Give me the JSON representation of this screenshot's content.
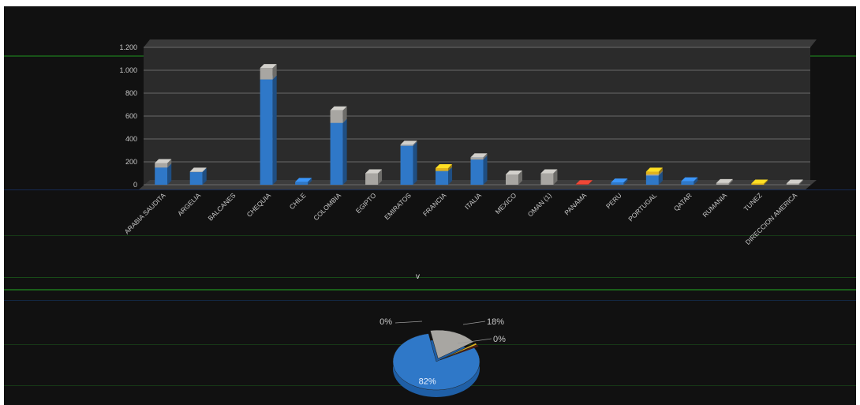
{
  "colors": {
    "background": "#111111",
    "plot_area": "#2b2b2b",
    "grid": "#6a6a6a",
    "blue": "#2f78c8",
    "blue_light": "#66a5e8",
    "gray": "#a8a6a2",
    "gray_light": "#d2d0cc",
    "yellow": "#e1b21c",
    "red": "#c0392b",
    "dark_red": "#5a1a12",
    "label": "#c8c8c8"
  },
  "chart_data": [
    {
      "type": "bar",
      "stacked": true,
      "three_d": true,
      "title": "",
      "xlabel": "",
      "ylabel": "",
      "ylim": [
        0,
        1200
      ],
      "yticks": [
        0,
        200,
        400,
        600,
        800,
        1000,
        1200
      ],
      "ytick_labels": [
        "0",
        "200",
        "400",
        "600",
        "800",
        "1.000",
        "1.200"
      ],
      "grid": true,
      "legend": "none",
      "categories": [
        "ARABIA SAUDITA",
        "ARGELIA",
        "BALCANES",
        "CHEQUIA",
        "CHILE",
        "COLOMBIA",
        "EGIPTO",
        "EMIRATOS",
        "FRANCIA",
        "ITALIA",
        "MEXICO",
        "OMAN (1)",
        "PANAMA",
        "PERU",
        "PORTUGAL",
        "QATAR",
        "RUMANIA",
        "TUNEZ",
        "DIRECCION AMERICA"
      ],
      "series": [
        {
          "color_key": "blue",
          "values": [
            150,
            110,
            0,
            920,
            25,
            540,
            0,
            340,
            120,
            220,
            0,
            0,
            0,
            20,
            80,
            30,
            0,
            0,
            0
          ]
        },
        {
          "color_key": "gray",
          "values": [
            40,
            5,
            0,
            100,
            0,
            110,
            100,
            10,
            0,
            20,
            90,
            100,
            0,
            0,
            10,
            0,
            15,
            0,
            10
          ]
        },
        {
          "color_key": "yellow",
          "values": [
            0,
            0,
            0,
            0,
            0,
            0,
            0,
            0,
            25,
            0,
            0,
            0,
            0,
            0,
            25,
            0,
            0,
            10,
            0
          ]
        },
        {
          "color_key": "red",
          "values": [
            0,
            0,
            0,
            0,
            0,
            0,
            0,
            0,
            0,
            0,
            0,
            0,
            5,
            0,
            0,
            0,
            0,
            0,
            0
          ]
        }
      ]
    },
    {
      "type": "pie",
      "three_d": true,
      "title": "",
      "slices": [
        {
          "color_key": "blue",
          "value": 82,
          "label": "82%"
        },
        {
          "color_key": "gray",
          "value": 18,
          "label": "18%"
        },
        {
          "color_key": "yellow",
          "value": 0,
          "label": "0%"
        },
        {
          "color_key": "dark_red",
          "value": 0,
          "label": "0%"
        }
      ]
    }
  ],
  "marker": "v"
}
